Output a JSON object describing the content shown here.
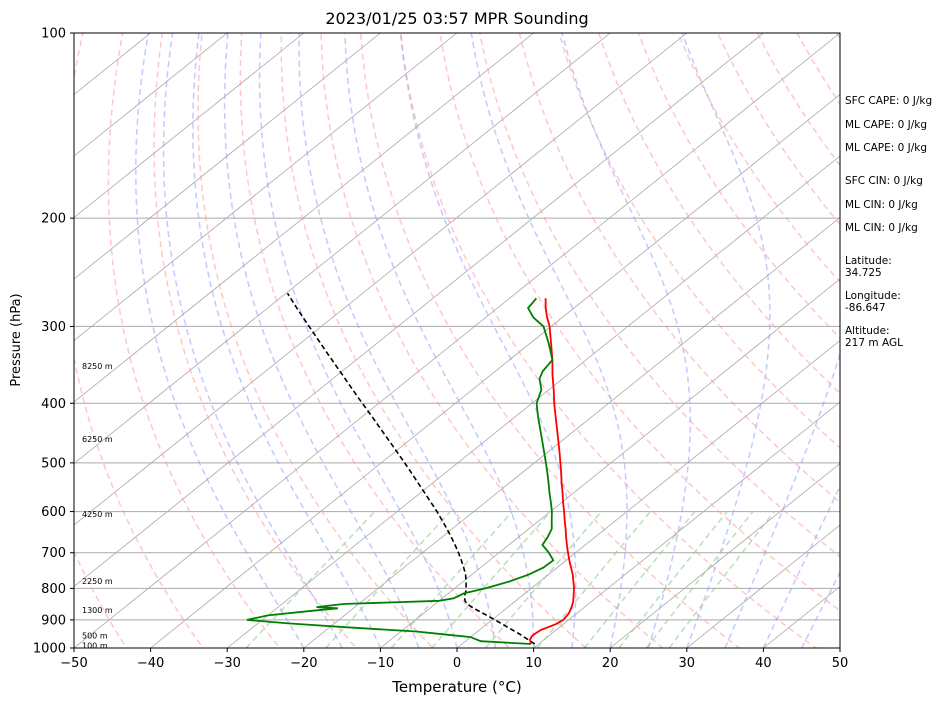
{
  "chart_data": {
    "type": "skew-t",
    "title": "2023/01/25 03:57 MPR Sounding",
    "xlabel": "Temperature (°C)",
    "ylabel": "Pressure (hPa)",
    "x_ticks": [
      -50,
      -40,
      -30,
      -20,
      -10,
      0,
      10,
      20,
      30,
      40,
      50
    ],
    "y_ticks": [
      1000,
      900,
      800,
      700,
      600,
      500,
      400,
      300,
      200,
      100
    ],
    "xlim": [
      -50,
      50
    ],
    "ylim": [
      1000,
      100
    ],
    "y_scale": "log",
    "grid": true,
    "temperature": {
      "color": "#ff0000",
      "p": [
        985,
        970,
        955,
        935,
        915,
        900,
        880,
        860,
        840,
        820,
        800,
        780,
        760,
        740,
        720,
        700,
        680,
        660,
        640,
        620,
        600,
        580,
        560,
        540,
        520,
        500,
        480,
        460,
        440,
        420,
        400,
        380,
        360,
        340,
        320,
        300,
        290,
        280,
        270
      ],
      "t": [
        9.0,
        8.2,
        7.8,
        8.0,
        9.0,
        9.3,
        9.0,
        8.4,
        7.6,
        6.6,
        5.6,
        4.4,
        3.2,
        1.8,
        0.4,
        -1.0,
        -2.4,
        -3.8,
        -5.2,
        -6.7,
        -8.2,
        -9.8,
        -11.4,
        -13.1,
        -14.8,
        -16.6,
        -18.5,
        -20.5,
        -22.6,
        -24.8,
        -27.1,
        -29.4,
        -31.9,
        -34.4,
        -37.2,
        -40.2,
        -42.0,
        -43.7,
        -45.3
      ]
    },
    "dewpoint": {
      "color": "#008000",
      "p": [
        985,
        975,
        960,
        950,
        940,
        925,
        912,
        900,
        885,
        870,
        862,
        858,
        848,
        838,
        830,
        815,
        800,
        780,
        760,
        740,
        720,
        700,
        680,
        660,
        640,
        620,
        600,
        580,
        560,
        540,
        520,
        500,
        480,
        460,
        440,
        420,
        400,
        380,
        365,
        355,
        340,
        320,
        300,
        290,
        280,
        270
      ],
      "t": [
        9.0,
        2.0,
        0.0,
        -4.0,
        -8.0,
        -18.0,
        -26.0,
        -32.0,
        -30.0,
        -25.0,
        -22.0,
        -25.0,
        -22.0,
        -10.0,
        -8.5,
        -8.0,
        -6.0,
        -4.0,
        -2.6,
        -1.8,
        -1.7,
        -3.5,
        -5.6,
        -6.2,
        -7.0,
        -8.4,
        -9.8,
        -11.4,
        -13.1,
        -14.8,
        -16.6,
        -18.5,
        -20.5,
        -22.6,
        -24.8,
        -27.1,
        -29.4,
        -31.0,
        -33.0,
        -33.8,
        -34.4,
        -37.5,
        -41.0,
        -43.8,
        -46.0,
        -46.5
      ]
    },
    "parcel": {
      "color": "#000000",
      "style": "dashed",
      "p": [
        985,
        950,
        900,
        860,
        850,
        840,
        830,
        820,
        810,
        800,
        780,
        760,
        740,
        720,
        700,
        680,
        660,
        640,
        620,
        600,
        570,
        540,
        510,
        480,
        450,
        420,
        390,
        360,
        330,
        300,
        280,
        265
      ],
      "t": [
        9.5,
        6.0,
        0.4,
        -4.5,
        -5.6,
        -6.5,
        -7.1,
        -7.6,
        -8.0,
        -8.5,
        -9.6,
        -10.8,
        -12.2,
        -13.7,
        -15.3,
        -17.0,
        -18.8,
        -20.7,
        -22.7,
        -24.8,
        -28.2,
        -31.8,
        -35.6,
        -39.7,
        -44.1,
        -48.8,
        -53.9,
        -59.3,
        -65.2,
        -71.6,
        -76.2,
        -79.8
      ]
    },
    "height_labels": [
      {
        "p": 990,
        "text": "100 m"
      },
      {
        "p": 955,
        "text": "500 m"
      },
      {
        "p": 868,
        "text": "1300 m"
      },
      {
        "p": 778,
        "text": "2250 m"
      },
      {
        "p": 605,
        "text": "4250 m"
      },
      {
        "p": 457,
        "text": "6250 m"
      },
      {
        "p": 348,
        "text": "8250 m"
      }
    ],
    "annotations": [
      "SFC CAPE: 0 J/kg",
      "ML CAPE: 0 J/kg",
      "ML CAPE: 0 J/kg",
      "SFC CIN: 0 J/kg",
      "ML CIN: 0 J/kg",
      "ML CIN: 0 J/kg",
      "Latitude:",
      "34.725",
      "Longitude:",
      "-86.647",
      "Altitude:",
      "217 m AGL"
    ]
  },
  "colors": {
    "isotherm": "#a9a9a9",
    "isobar": "#a9a9a9",
    "dry_adiabat": "#ff9999",
    "moist_adiabat": "#9999ff",
    "mixing_ratio": "#88cc88"
  }
}
